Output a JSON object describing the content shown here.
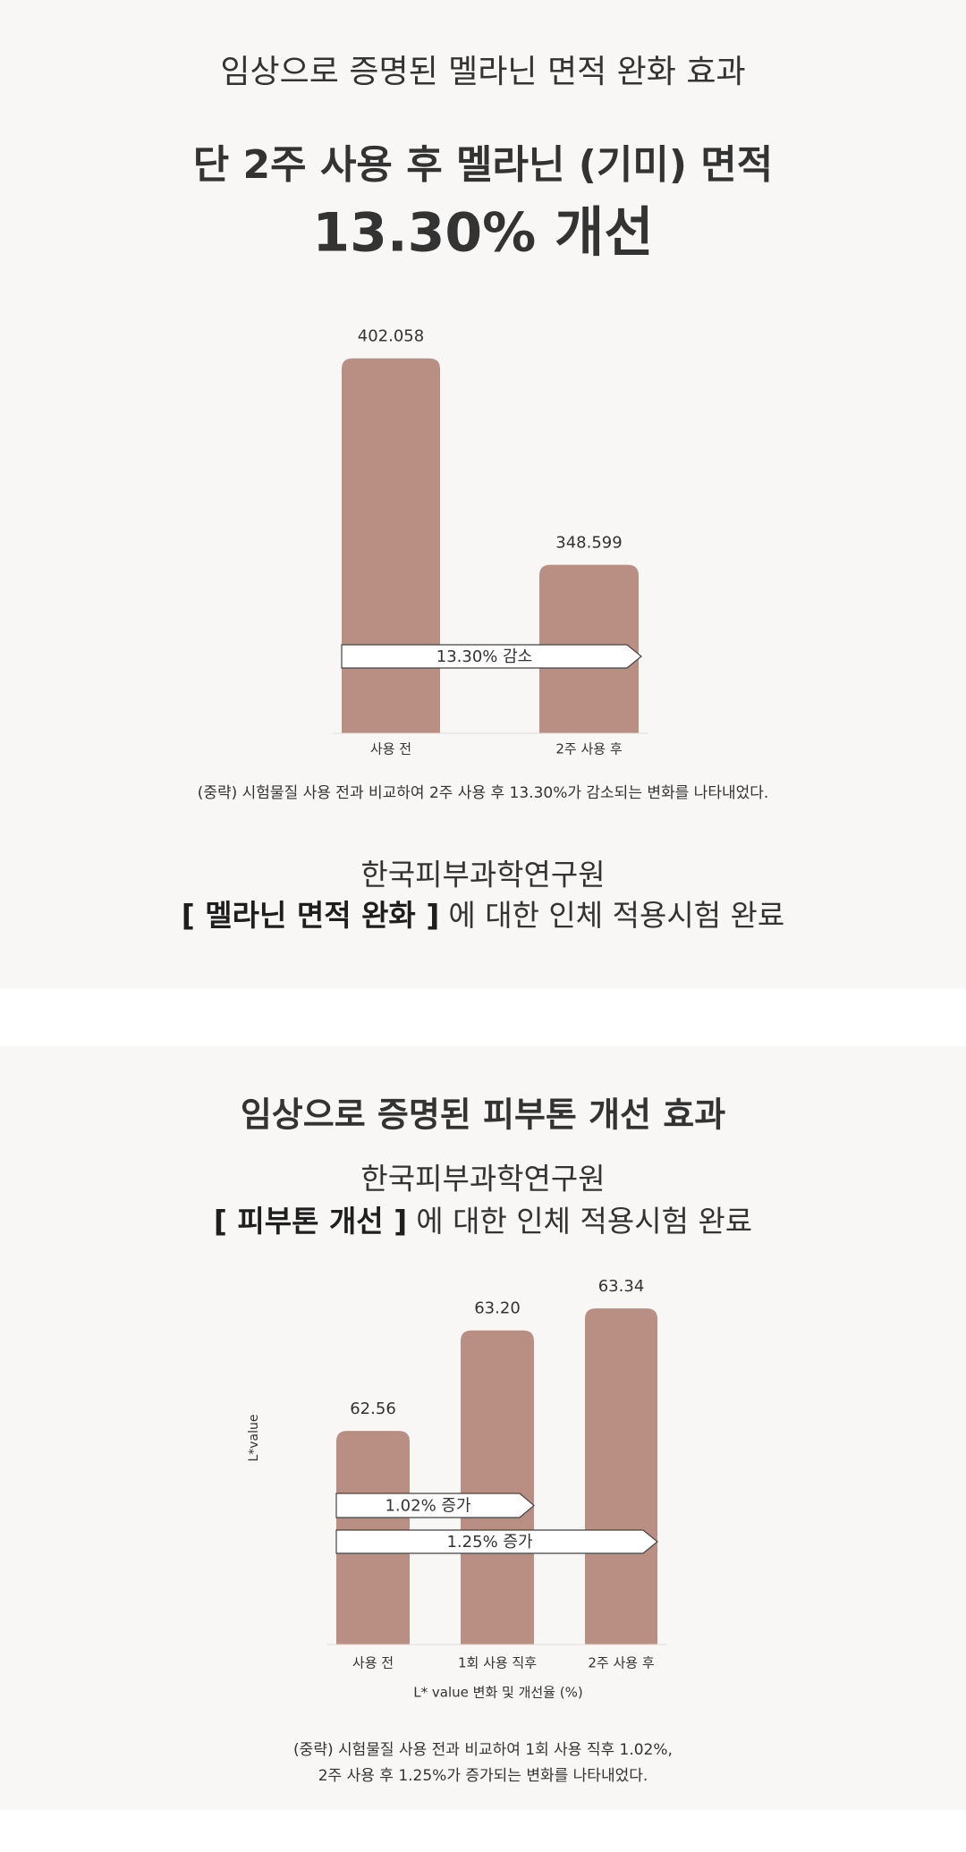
{
  "chart_data": [
    {
      "type": "bar",
      "title": "임상으로 증명된 멜라닌 면적 완화 효과",
      "subtitle": "단 2주 사용 후 멜라닌 (기미) 면적",
      "highlight": "13.30% 개선",
      "categories": [
        "사용 전",
        "2주 사용 후"
      ],
      "values": [
        402.058,
        348.599
      ],
      "color": "#b98f83",
      "ylim": [
        305,
        405
      ],
      "annotations": [
        "13.30% 감소"
      ],
      "footnote": [
        "(중략) 시험물질 사용 전과 비교하여 2주 사용 후 13.30%가 감소되는 변화를 나타내었다."
      ],
      "institute": "한국피부과학연구원",
      "test_name": "[ 멜라닌 면적 완화 ]",
      "test_note": "에 대한 인체 적용시험 완료"
    },
    {
      "type": "bar",
      "title": "임상으로 증명된 피부톤 개선 효과",
      "institute": "한국피부과학연구원",
      "test_name": "[ 피부톤 개선 ]",
      "test_note": "에 대한 인체 적용시험 완료",
      "categories": [
        "사용 전",
        "1회 사용 직후",
        "2주 사용 후"
      ],
      "values": [
        62.56,
        63.2,
        63.34
      ],
      "value_labels": [
        "62.56",
        "63.20",
        "63.34"
      ],
      "color": "#b98f83",
      "ylim": [
        61.2,
        63.5
      ],
      "ylabel": "L*value",
      "xlabel": "L* value 변화 및 개선율 (%)",
      "annotations": [
        "1.02% 증가",
        "1.25% 증가"
      ],
      "footnote": [
        "(중략) 시험물질 사용 전과 비교하여 1회 사용 직후 1.02%,",
        "2주 사용 후 1.25%가 증가되는 변화를 나타내었다."
      ]
    }
  ]
}
